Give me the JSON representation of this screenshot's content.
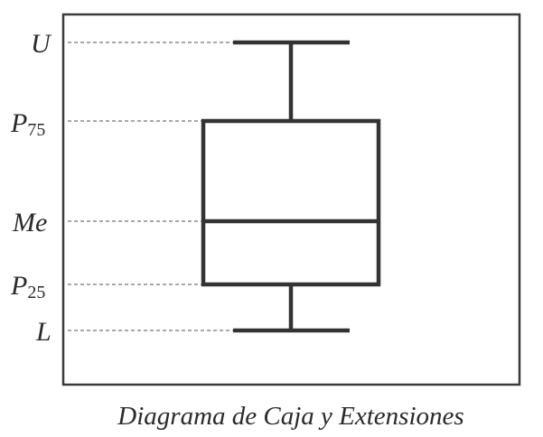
{
  "labels": {
    "upper": "U",
    "p75_base": "P",
    "p75_sub": "75",
    "median": "Me",
    "p25_base": "P",
    "p25_sub": "25",
    "lower": "L"
  },
  "caption": "Diagrama de Caja y Extensiones"
}
